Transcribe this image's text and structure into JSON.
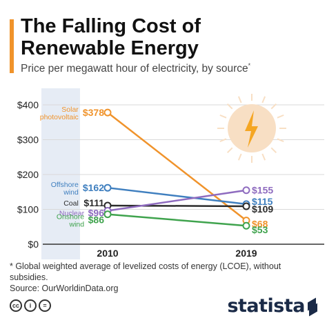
{
  "colors": {
    "accent": "#f0932b",
    "highlight_band": "#e6ecf5",
    "axis": "#333333",
    "grid": "#d9d9d9",
    "sun": "#f8dfc4",
    "bolt": "#f5a623"
  },
  "header": {
    "title_line1": "The Falling Cost of",
    "title_line2": "Renewable Energy",
    "subtitle": "Price per megawatt hour of electricity, by source",
    "subtitle_mark": "*"
  },
  "icons": [
    "sun-icon",
    "lightning-bolt-icon",
    "cc-icon",
    "info-icon",
    "equals-icon"
  ],
  "chart_data": {
    "type": "line",
    "title": "The Falling Cost of Renewable Energy",
    "subtitle": "Price per megawatt hour of electricity, by source*",
    "x": [
      "2010",
      "2019"
    ],
    "y_ticks": [
      "$400",
      "$300",
      "$200",
      "$100",
      "$0"
    ],
    "y_tick_values": [
      400,
      300,
      200,
      100,
      0
    ],
    "ylim": [
      0,
      400
    ],
    "grid": true,
    "highlight_band": "2010 label column",
    "series": [
      {
        "name": "Solar photovoltaic",
        "name_lines": [
          "Solar",
          "photovoltaic"
        ],
        "values": [
          378,
          68
        ],
        "labels": [
          "$378",
          "$68"
        ],
        "color": "#f0932b"
      },
      {
        "name": "Offshore wind",
        "name_lines": [
          "Offshore",
          "wind"
        ],
        "values": [
          162,
          115
        ],
        "labels": [
          "$162",
          "$115"
        ],
        "color": "#3f7fbf"
      },
      {
        "name": "Coal",
        "name_lines": [
          "Coal"
        ],
        "values": [
          111,
          109
        ],
        "labels": [
          "$111",
          "$109"
        ],
        "color": "#2b2b2b"
      },
      {
        "name": "Nuclear",
        "name_lines": [
          "Nuclear"
        ],
        "values": [
          96,
          155
        ],
        "labels": [
          "$96",
          "$155"
        ],
        "color": "#8e6bbf"
      },
      {
        "name": "Onshore wind",
        "name_lines": [
          "Onshore",
          "wind"
        ],
        "values": [
          86,
          53
        ],
        "labels": [
          "$86",
          "$53"
        ],
        "color": "#3fa34d"
      }
    ]
  },
  "footer": {
    "note": "* Global weighted average of levelized costs of energy (LCOE), without subsidies.",
    "source": "Source: OurWorldinData.org"
  },
  "badges": {
    "cc": "cc",
    "info": "i",
    "equals": "="
  },
  "brand": "statista"
}
